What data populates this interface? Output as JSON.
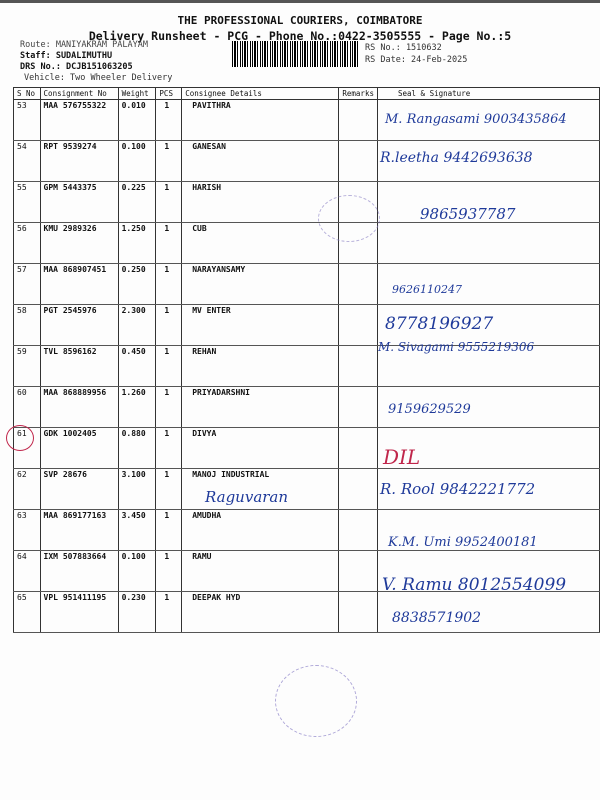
{
  "header": {
    "title": "THE PROFESSIONAL COURIERS, COIMBATORE",
    "subtitle": "Delivery Runsheet - PCG - Phone No.:0422-3505555 - Page No.:5",
    "route": "Route: MANIYAKRAM PALAYAM",
    "staff": "Staff: SUDALIMUTHU",
    "drs": "DRS No.: DCJB151063205",
    "vehicle": "Vehicle: Two Wheeler Delivery",
    "rs_no": "RS No.: 1510632",
    "rs_date": "RS Date: 24-Feb-2025"
  },
  "columns": [
    "S No",
    "Consignment No",
    "Weight",
    "PCS",
    "Consignee Details",
    "Remarks",
    "Seal & Signature"
  ],
  "rows": [
    {
      "sno": "53",
      "cn": "MAA 576755322",
      "wt": "0.010",
      "pcs": "1",
      "name": "PAVITHRA",
      "sig": "M. Rangasami 9003435864"
    },
    {
      "sno": "54",
      "cn": "RPT 9539274",
      "wt": "0.100",
      "pcs": "1",
      "name": "GANESAN",
      "sig": "R.leetha 9442693638"
    },
    {
      "sno": "55",
      "cn": "GPM 5443375",
      "wt": "0.225",
      "pcs": "1",
      "name": "HARISH",
      "sig": "9865937787"
    },
    {
      "sno": "56",
      "cn": "KMU 2989326",
      "wt": "1.250",
      "pcs": "1",
      "name": "CUB",
      "sig": ""
    },
    {
      "sno": "57",
      "cn": "MAA 868907451",
      "wt": "0.250",
      "pcs": "1",
      "name": "NARAYANSAMY",
      "sig": "9626110247"
    },
    {
      "sno": "58",
      "cn": "PGT 2545976",
      "wt": "2.300",
      "pcs": "1",
      "name": "MV ENTER",
      "sig": "8778196927"
    },
    {
      "sno": "59",
      "cn": "TVL 8596162",
      "wt": "0.450",
      "pcs": "1",
      "name": "REHAN",
      "sig": "M. Sivagami 9555219306"
    },
    {
      "sno": "60",
      "cn": "MAA 868889956",
      "wt": "1.260",
      "pcs": "1",
      "name": "PRIYADARSHNI",
      "sig": "9159629529"
    },
    {
      "sno": "61",
      "cn": "GDK 1002405",
      "wt": "0.880",
      "pcs": "1",
      "name": "DIVYA",
      "sig": "DIL"
    },
    {
      "sno": "62",
      "cn": "SVP 28676",
      "wt": "3.100",
      "pcs": "1",
      "name": "MANOJ  INDUSTRIAL",
      "sig": "R. Rool 9842221772",
      "note": "Raguvaran"
    },
    {
      "sno": "63",
      "cn": "MAA 869177163",
      "wt": "3.450",
      "pcs": "1",
      "name": "AMUDHA",
      "sig": "K.M. Umi 9952400181"
    },
    {
      "sno": "64",
      "cn": "IXM 507883664",
      "wt": "0.100",
      "pcs": "1",
      "name": "RAMU",
      "sig": "V. Ramu 8012554099"
    },
    {
      "sno": "65",
      "cn": "VPL 951411195",
      "wt": "0.230",
      "pcs": "1",
      "name": "DEEPAK HYD",
      "sig": "8838571902"
    }
  ]
}
